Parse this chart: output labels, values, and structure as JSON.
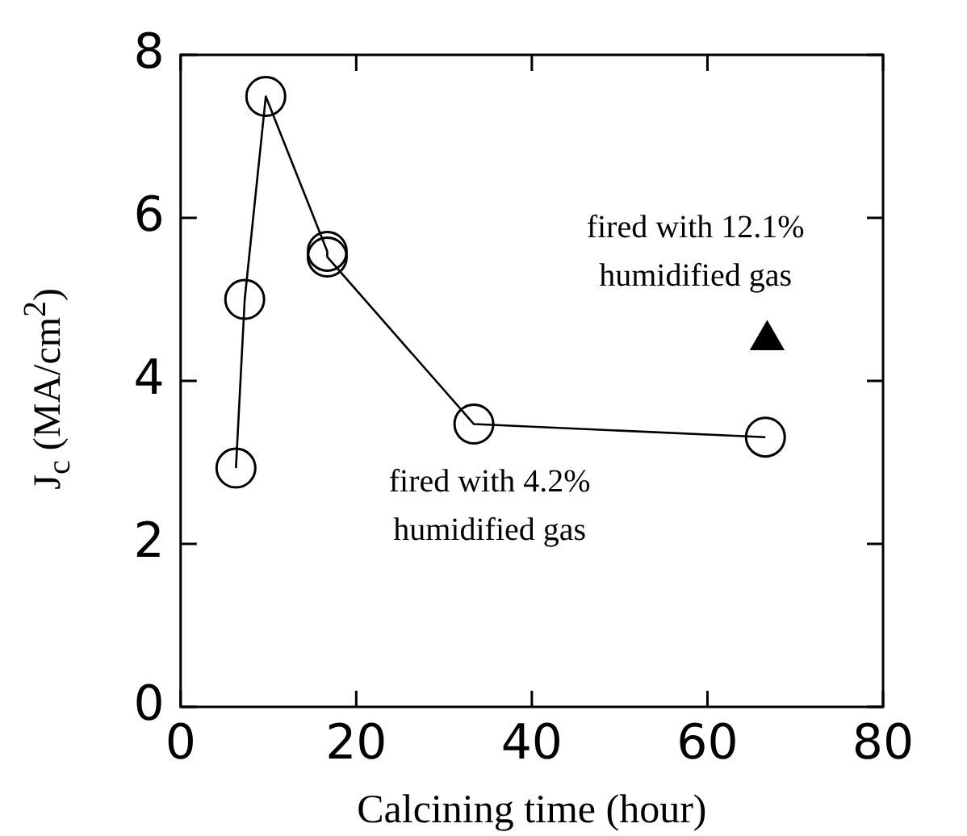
{
  "chart_data": {
    "type": "line",
    "xlabel": "Calcining time (hour)",
    "ylabel": "J$_{c}$ (MA/cm$^{2}$)",
    "xlim": [
      0,
      80
    ],
    "xticks": [
      0,
      20,
      40,
      60,
      80
    ],
    "ylim": [
      0,
      8
    ],
    "yticks": [
      0,
      2,
      4,
      6,
      8
    ],
    "grid": false,
    "legend": false,
    "series": [
      {
        "color": "#000000",
        "marker": "circle",
        "x": [
          6.3,
          7.3,
          9.7,
          16.7,
          16.7,
          33.4,
          66.6
        ],
        "values": [
          2.93,
          5.0,
          7.49,
          5.59,
          5.52,
          3.47,
          3.31
        ]
      },
      {
        "type": "scatter",
        "color": "#000000",
        "marker": "triangle",
        "x": [
          66.8
        ],
        "values": [
          4.5
        ]
      }
    ],
    "annotations": [
      "fired with 12.1%\nhumidified gas",
      "fired with 4.2%\nhumidified gas"
    ]
  }
}
